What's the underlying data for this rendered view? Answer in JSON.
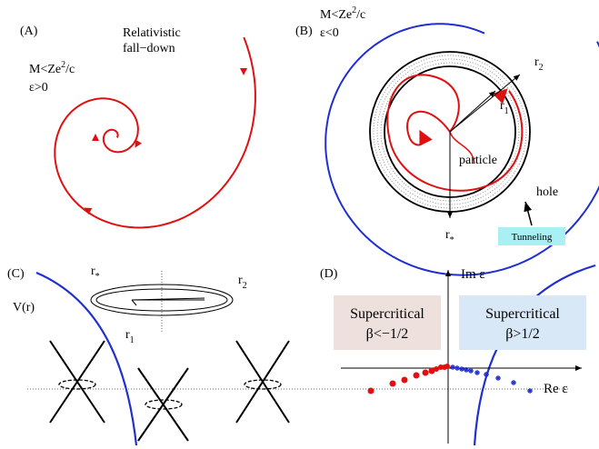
{
  "panels": {
    "A": {
      "label": "(A)",
      "title": [
        "Relativistic",
        "fall−down"
      ],
      "condition": {
        "base": "M<Ze",
        "sup": "2",
        "tail": "/c"
      },
      "energy": "ε>0"
    },
    "B": {
      "label": "(B)",
      "condition": {
        "base": "M<Ze",
        "sup": "2",
        "tail": "/c"
      },
      "energy": "ε<0",
      "r2": {
        "base": "r",
        "sub": "2"
      },
      "r1": {
        "base": "r",
        "sub": "1"
      },
      "particle": "particle",
      "hole": "hole",
      "rstar": {
        "base": "r",
        "sub": "*"
      },
      "tunneling": "Tunneling"
    },
    "C": {
      "label": "(C)",
      "rstar": {
        "base": "r",
        "sub": "*"
      },
      "r2": {
        "base": "r",
        "sub": "2"
      },
      "potential": "V(r)",
      "r1": {
        "base": "r",
        "sub": "1"
      }
    },
    "D": {
      "label": "(D)",
      "im_axis": "Im ε",
      "re_axis": "Re ε",
      "left_box": [
        "Supercritical",
        "β<−1/2"
      ],
      "right_box": [
        "Supercritical",
        "β>1/2"
      ]
    }
  }
}
